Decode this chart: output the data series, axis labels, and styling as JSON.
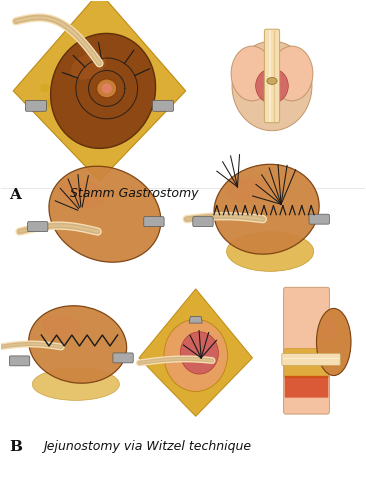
{
  "background_color": "#ffffff",
  "label_A": "A",
  "label_B": "B",
  "caption_A": "Stamm Gastrostomy",
  "caption_B": "Jejunostomy via Witzel technique",
  "label_fontsize": 11,
  "caption_fontsize": 9,
  "fig_width": 3.66,
  "fig_height": 5.0,
  "dpi": 100,
  "panel_A1": {
    "stomach_color": "#8B4513",
    "fat_color": "#DAA520",
    "tube_color": "#F5DEB3",
    "clamp_color": "#A9A9A9"
  },
  "panel_A2": {
    "skin_color": "#F4C2A1",
    "tube_color": "#F5DEB3",
    "tissue_color": "#CD5C5C"
  },
  "panel_B1": {
    "bowel_color": "#CD853F",
    "tube_color": "#F5DEB3",
    "clamp_color": "#A9A9A9",
    "suture_color": "#1a1a1a"
  },
  "panel_B2": {
    "bowel_color": "#CD853F",
    "tube_color": "#F5DEB3",
    "clamp_color": "#A9A9A9",
    "suture_color": "#1a1a1a",
    "fat_color": "#DAA520"
  },
  "panel_B3": {
    "bowel_color": "#CD853F",
    "tube_color": "#F5DEB3",
    "suture_color": "#1a1a1a",
    "clamp_color": "#A9A9A9",
    "fat_color": "#DAA520"
  },
  "panel_B4": {
    "fat_color": "#DAA520",
    "tissue_color": "#CD5C5C",
    "tube_color": "#F5DEB3",
    "suture_color": "#1a1a1a",
    "clamp_color": "#A9A9A9"
  },
  "panel_B5": {
    "skin_color": "#F4C2A1",
    "bowel_color": "#CD853F",
    "tube_color": "#F5DEB3",
    "fat_color": "#DAA520",
    "red_color": "#CC2200"
  }
}
